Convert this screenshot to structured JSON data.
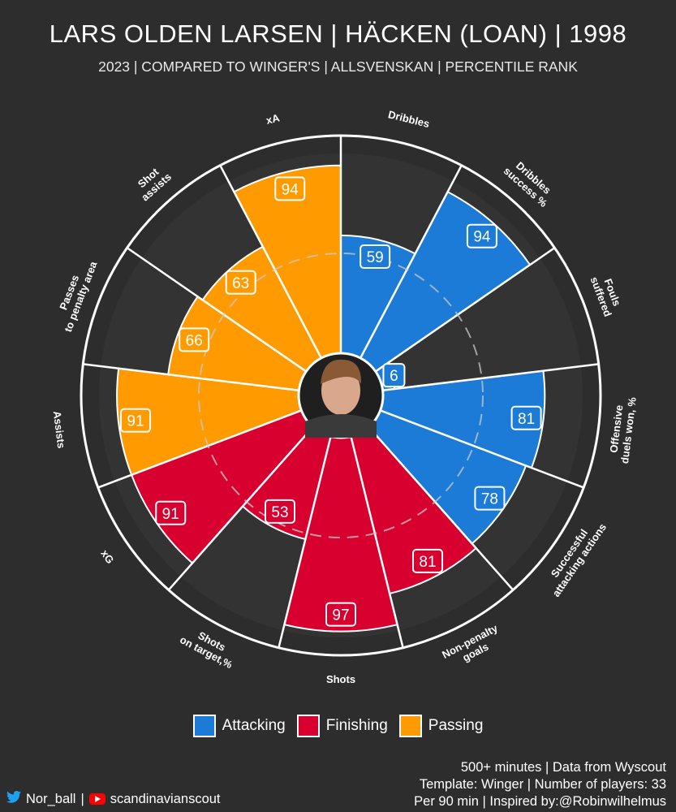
{
  "header": {
    "title": "LARS OLDEN LARSEN | HÄCKEN (LOAN) | 1998",
    "subtitle": "2023 | COMPARED TO WINGER'S | ALLSVENSKAN | PERCENTILE RANK"
  },
  "colors": {
    "background": "#2d2d2d",
    "slice_background": "#333333",
    "Attacking": "#1b7bd6",
    "Finishing": "#d8002f",
    "Passing": "#ff9a00"
  },
  "chart_data": {
    "type": "polar-bar",
    "scale": [
      0,
      100
    ],
    "categories": [
      {
        "label": "Dribbles",
        "value": 59,
        "group": "Attacking"
      },
      {
        "label": "Dribbles success %",
        "value": 94,
        "group": "Attacking"
      },
      {
        "label": "Fouls suffered",
        "value": 6,
        "group": "Attacking"
      },
      {
        "label": "Offensive duels won, %",
        "value": 81,
        "group": "Attacking"
      },
      {
        "label": "Successful attacking actions",
        "value": 78,
        "group": "Attacking"
      },
      {
        "label": "Non-penalty goals",
        "value": 81,
        "group": "Finishing"
      },
      {
        "label": "Shots",
        "value": 97,
        "group": "Finishing"
      },
      {
        "label": "Shots on target,%",
        "value": 53,
        "group": "Finishing"
      },
      {
        "label": "xG",
        "value": 91,
        "group": "Finishing"
      },
      {
        "label": "Assists",
        "value": 91,
        "group": "Passing"
      },
      {
        "label": "Passes to penalty area",
        "value": 66,
        "group": "Passing"
      },
      {
        "label": "Shot assists",
        "value": 63,
        "group": "Passing"
      },
      {
        "label": "xA",
        "value": 94,
        "group": "Passing"
      }
    ],
    "legend": [
      "Attacking",
      "Finishing",
      "Passing"
    ]
  },
  "notes": {
    "line1": "500+ minutes | Data from Wyscout",
    "line2": "Template: Winger | Number of players: 33",
    "line3": "Per 90 min | Inspired by:@Robinwilhelmus"
  },
  "credits": {
    "twitter_icon": "twitter-icon",
    "twitter": "Nor_ball",
    "separator": "|",
    "youtube_icon": "youtube-icon",
    "youtube": "scandinavianscout"
  }
}
